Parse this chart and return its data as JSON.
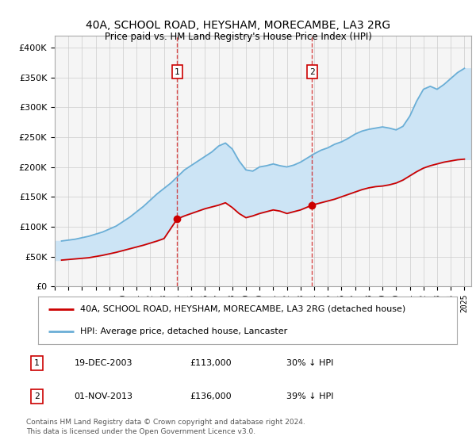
{
  "title": "40A, SCHOOL ROAD, HEYSHAM, MORECAMBE, LA3 2RG",
  "subtitle": "Price paid vs. HM Land Registry's House Price Index (HPI)",
  "xlim_start": 1995.0,
  "xlim_end": 2025.5,
  "ylim": [
    0,
    420000
  ],
  "yticks": [
    0,
    50000,
    100000,
    150000,
    200000,
    250000,
    300000,
    350000,
    400000
  ],
  "ytick_labels": [
    "£0",
    "£50K",
    "£100K",
    "£150K",
    "£200K",
    "£250K",
    "£300K",
    "£350K",
    "£400K"
  ],
  "sale1_x": 2003.97,
  "sale1_y": 113000,
  "sale1_label": "1",
  "sale1_date": "19-DEC-2003",
  "sale1_price": "£113,000",
  "sale1_hpi": "30% ↓ HPI",
  "sale2_x": 2013.84,
  "sale2_y": 136000,
  "sale2_label": "2",
  "sale2_date": "01-NOV-2013",
  "sale2_price": "£136,000",
  "sale2_hpi": "39% ↓ HPI",
  "line_red_color": "#cc0000",
  "line_blue_color": "#6aaed6",
  "shade_color": "#cce4f5",
  "vline_color": "#cc0000",
  "legend_red_label": "40A, SCHOOL ROAD, HEYSHAM, MORECAMBE, LA3 2RG (detached house)",
  "legend_blue_label": "HPI: Average price, detached house, Lancaster",
  "footer_line1": "Contains HM Land Registry data © Crown copyright and database right 2024.",
  "footer_line2": "This data is licensed under the Open Government Licence v3.0.",
  "background_color": "#ffffff",
  "plot_bg_color": "#f5f5f5",
  "hpi_years": [
    1995.5,
    1996.5,
    1997.5,
    1998.5,
    1999.5,
    2000.5,
    2001.5,
    2002.5,
    2003.5,
    2004.5,
    2005.5,
    2006.5,
    2007.0,
    2007.5,
    2008.0,
    2008.5,
    2009.0,
    2009.5,
    2010.0,
    2010.5,
    2011.0,
    2011.5,
    2012.0,
    2012.5,
    2013.0,
    2013.5,
    2014.0,
    2014.5,
    2015.0,
    2015.5,
    2016.0,
    2016.5,
    2017.0,
    2017.5,
    2018.0,
    2018.5,
    2019.0,
    2019.5,
    2020.0,
    2020.5,
    2021.0,
    2021.5,
    2022.0,
    2022.5,
    2023.0,
    2023.5,
    2024.0,
    2024.5,
    2025.0
  ],
  "hpi_values": [
    76000,
    79000,
    84000,
    91000,
    101000,
    116000,
    134000,
    155000,
    173000,
    195000,
    210000,
    225000,
    235000,
    240000,
    230000,
    210000,
    195000,
    193000,
    200000,
    202000,
    205000,
    202000,
    200000,
    203000,
    208000,
    215000,
    222000,
    228000,
    232000,
    238000,
    242000,
    248000,
    255000,
    260000,
    263000,
    265000,
    267000,
    265000,
    262000,
    268000,
    285000,
    310000,
    330000,
    335000,
    330000,
    338000,
    348000,
    358000,
    365000
  ],
  "red_years": [
    1995.5,
    1996.5,
    1997.5,
    1998.5,
    1999.5,
    2000.5,
    2001.5,
    2002.5,
    2003.0,
    2003.97,
    2004.5,
    2005.0,
    2005.5,
    2006.0,
    2006.5,
    2007.0,
    2007.5,
    2008.0,
    2008.5,
    2009.0,
    2009.5,
    2010.0,
    2010.5,
    2011.0,
    2011.5,
    2012.0,
    2012.5,
    2013.0,
    2013.84,
    2014.5,
    2015.0,
    2015.5,
    2016.0,
    2016.5,
    2017.0,
    2017.5,
    2018.0,
    2018.5,
    2019.0,
    2019.5,
    2020.0,
    2020.5,
    2021.0,
    2021.5,
    2022.0,
    2022.5,
    2023.0,
    2023.5,
    2024.0,
    2024.5,
    2025.0
  ],
  "red_values": [
    44000,
    46000,
    48000,
    52000,
    57000,
    63000,
    69000,
    76000,
    80000,
    113000,
    118000,
    122000,
    126000,
    130000,
    133000,
    136000,
    140000,
    132000,
    122000,
    115000,
    118000,
    122000,
    125000,
    128000,
    126000,
    122000,
    125000,
    128000,
    136000,
    140000,
    143000,
    146000,
    150000,
    154000,
    158000,
    162000,
    165000,
    167000,
    168000,
    170000,
    173000,
    178000,
    185000,
    192000,
    198000,
    202000,
    205000,
    208000,
    210000,
    212000,
    213000
  ]
}
